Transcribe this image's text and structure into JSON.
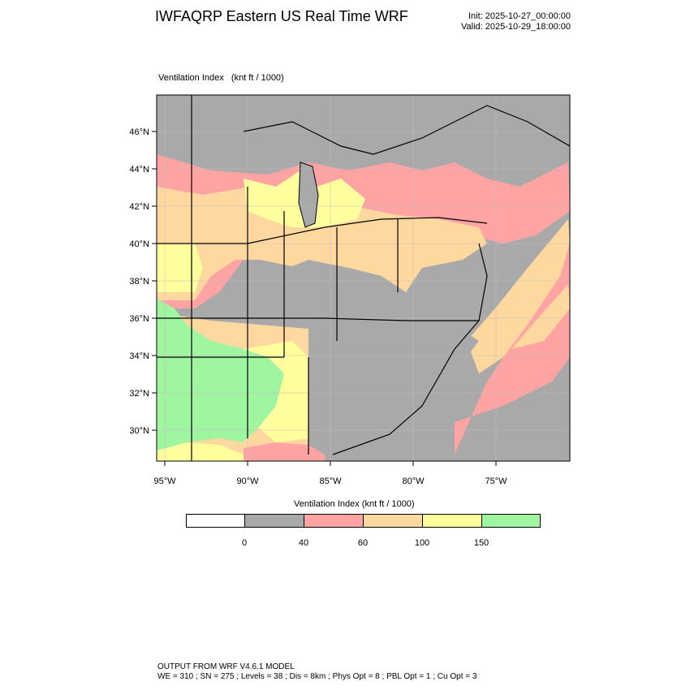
{
  "header": {
    "title": "IWFAQRP Eastern US Real Time WRF",
    "init": "Init: 2025-10-27_00:00:00",
    "valid": "Valid: 2025-10-29_18:00:00"
  },
  "field": {
    "label": "Ventilation Index",
    "units": "(knt ft / 1000)"
  },
  "axes": {
    "lat_labels": [
      "46°N",
      "44°N",
      "42°N",
      "40°N",
      "38°N",
      "36°N",
      "34°N",
      "32°N",
      "30°N"
    ],
    "lon_labels": [
      "95°W",
      "90°W",
      "85°W",
      "80°W",
      "75°W"
    ]
  },
  "colorbar": {
    "title": "Ventilation Index  (knt ft / 1000)",
    "colors": [
      "#ffffff",
      "#a9a9a9",
      "#ffa3a3",
      "#ffd8a0",
      "#ffff9e",
      "#a0f5a0"
    ],
    "labels": [
      "0",
      "40",
      "60",
      "100",
      "150"
    ]
  },
  "palette": {
    "water": "#a9a9a9",
    "land_gray": "#a9a9a9",
    "pink": "#ffa3a3",
    "peach": "#ffd8a0",
    "yellow": "#ffff9e",
    "green": "#a0f5a0"
  },
  "footer": {
    "line1": "OUTPUT FROM WRF V4.6.1 MODEL",
    "line2": "WE = 310 ; SN = 275 ; Levels = 38 ; Dis = 8km ; Phys Opt = 8 ; PBL Opt = 1 ; Cu Opt = 3"
  }
}
